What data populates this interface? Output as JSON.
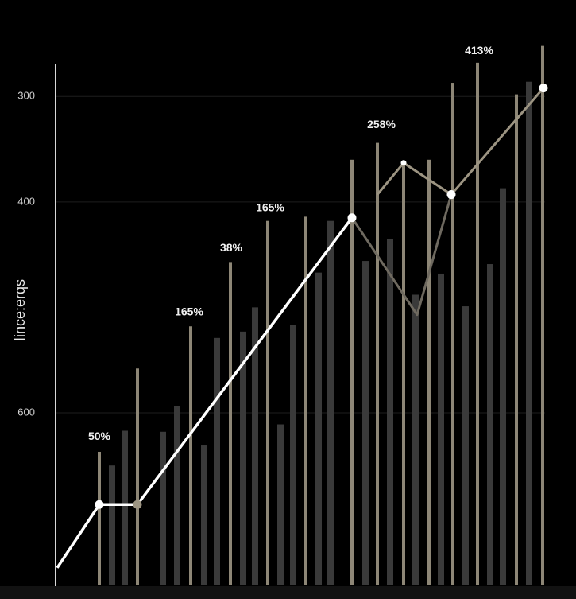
{
  "chart_data": {
    "type": "bar_line",
    "y_label": "Iince:erqs",
    "ylim": [
      763,
      250
    ],
    "yticks": [
      300,
      400,
      600
    ],
    "xlim": [
      0,
      616
    ],
    "grid": true,
    "bar_series": [
      {
        "color": "#8d8676",
        "x": [
          55,
          103,
          170,
          220,
          267,
          315,
          373,
          405,
          438,
          470,
          500,
          531,
          580,
          613
        ],
        "values": [
          637,
          558,
          518,
          457,
          418,
          414,
          360,
          344,
          363,
          360,
          287,
          268,
          298,
          252
        ]
      },
      {
        "color": "#3a3a3a",
        "x": [
          71,
          87,
          135,
          153,
          187,
          203,
          236,
          251,
          283,
          299,
          331,
          346,
          390,
          421,
          453,
          485,
          516,
          547,
          563,
          596
        ],
        "values": [
          650,
          617,
          618,
          594,
          631,
          529,
          523,
          500,
          611,
          517,
          467,
          418,
          456,
          435,
          488,
          468,
          499,
          459,
          387,
          286
        ]
      }
    ],
    "line_series": [
      {
        "color": "#ffffff",
        "x": [
          2,
          55,
          103,
          373
        ],
        "values": [
          747,
          687,
          687,
          415
        ]
      },
      {
        "color": "#6f6a60",
        "x": [
          373,
          455,
          498
        ],
        "values": [
          415,
          507,
          393
        ]
      },
      {
        "color": "#9c9482",
        "x": [
          405,
          438,
          498,
          614
        ],
        "values": [
          393,
          363,
          393,
          292
        ]
      }
    ],
    "points": {
      "x": [
        55,
        103,
        373,
        438,
        498,
        614
      ],
      "values": [
        687,
        687,
        415,
        363,
        393,
        292
      ]
    },
    "annotations": [
      {
        "text": "50%",
        "x": 55,
        "y": 623
      },
      {
        "text": "165%",
        "x": 168,
        "y": 505
      },
      {
        "text": "38%",
        "x": 221,
        "y": 444
      },
      {
        "text": "165%",
        "x": 270,
        "y": 406
      },
      {
        "text": "258%",
        "x": 410,
        "y": 327
      },
      {
        "text": "413%",
        "x": 533,
        "y": 257
      }
    ]
  }
}
